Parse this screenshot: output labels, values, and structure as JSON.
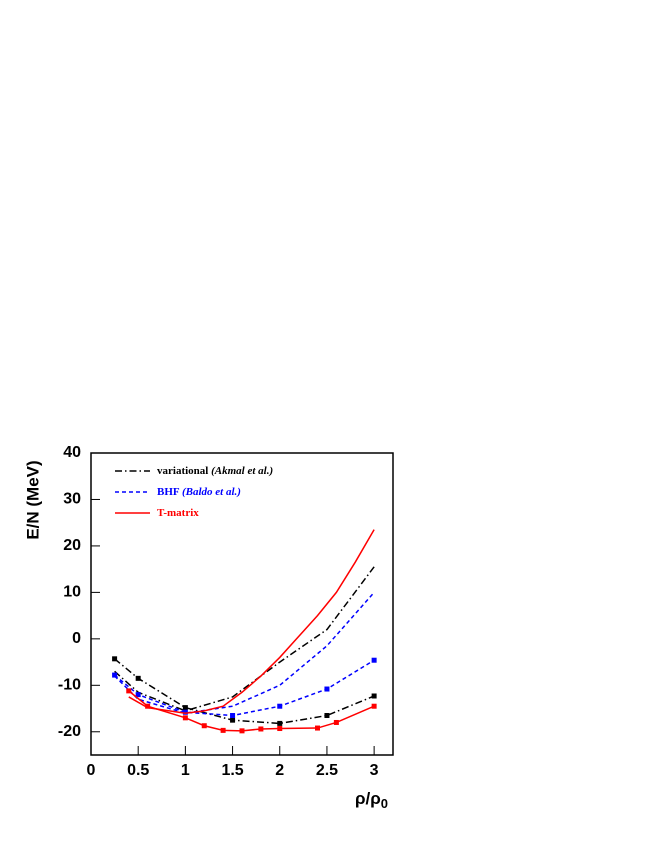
{
  "chart_data": {
    "type": "line",
    "xlabel": "ρ/ρ",
    "xlabel_sub": "0",
    "ylabel": "E/N (MeV)",
    "xlim": [
      0,
      3.2
    ],
    "ylim": [
      -25,
      40
    ],
    "xticks": [
      0,
      0.5,
      1,
      1.5,
      2,
      2.5,
      3
    ],
    "yticks": [
      -20,
      -10,
      0,
      10,
      20,
      30,
      40
    ],
    "series": [
      {
        "name": "variational",
        "ref": "(Akmal et al.)",
        "color": "#000000",
        "dash": "7,3,1.5,3",
        "curves": [
          {
            "markers": true,
            "x": [
              0.25,
              0.5,
              1,
              1.5,
              2,
              2.5,
              3
            ],
            "values": [
              -4.3,
              -8.5,
              -14.8,
              -17.5,
              -18.2,
              -16.5,
              -12.3
            ]
          },
          {
            "markers": false,
            "x": [
              0.25,
              0.5,
              1,
              1.5,
              2,
              2.5,
              3
            ],
            "values": [
              -7,
              -11.5,
              -15.5,
              -12.5,
              -5,
              2,
              15.5
            ]
          }
        ]
      },
      {
        "name": "BHF",
        "ref": "(Baldo et al.)",
        "color": "#0000ff",
        "dash": "4,3",
        "curves": [
          {
            "markers": true,
            "x": [
              0.25,
              0.5,
              1,
              1.5,
              2,
              2.5,
              3
            ],
            "values": [
              -7.8,
              -12,
              -15.8,
              -16.5,
              -14.5,
              -10.8,
              -4.6
            ]
          },
          {
            "markers": false,
            "x": [
              0.25,
              0.5,
              1,
              1.5,
              2,
              2.5,
              3
            ],
            "values": [
              -8,
              -13,
              -16,
              -14.5,
              -10,
              -1.5,
              10
            ]
          }
        ]
      },
      {
        "name": "T-matrix",
        "color": "#ff0000",
        "dash": "none",
        "curves": [
          {
            "markers": true,
            "x": [
              0.4,
              0.6,
              1,
              1.2,
              1.4,
              1.6,
              1.8,
              2,
              2.4,
              2.6,
              3
            ],
            "values": [
              -11.2,
              -14.5,
              -17,
              -18.7,
              -19.7,
              -19.8,
              -19.4,
              -19.3,
              -19.2,
              -18,
              -14.5
            ]
          },
          {
            "markers": false,
            "x": [
              0.4,
              0.6,
              1,
              1.2,
              1.4,
              1.6,
              1.8,
              2,
              2.2,
              2.4,
              2.6,
              2.8,
              3
            ],
            "values": [
              -12.5,
              -14.8,
              -16,
              -15.5,
              -14.5,
              -11.5,
              -8,
              -4,
              0.5,
              5,
              10,
              16.5,
              23.5
            ]
          }
        ]
      }
    ]
  }
}
